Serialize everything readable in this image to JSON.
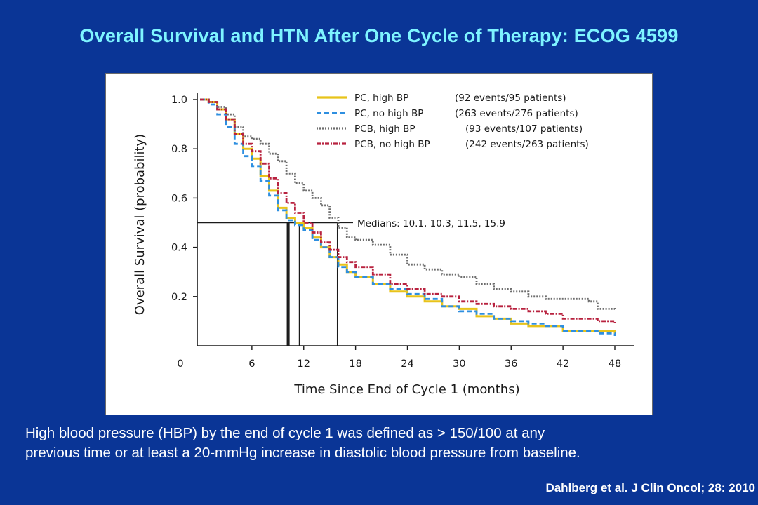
{
  "slide": {
    "title": "Overall Survival and HTN After One Cycle of Therapy: ECOG 4599",
    "caption_line1": "High blood pressure (HBP) by the end of cycle 1 was defined as > 150/100 at any",
    "caption_line2": "previous time or at least a 20-mmHg increase in diastolic blood pressure from baseline.",
    "citation": "Dahlberg et al. J Clin Oncol; 28: 2010"
  },
  "chart_data": {
    "type": "line",
    "xlabel": "Time Since End of Cycle 1 (months)",
    "ylabel": "Overall Survival (probability)",
    "xlim": [
      0,
      48
    ],
    "ylim": [
      0,
      1.0
    ],
    "x_ticks": [
      "0",
      "6",
      "12",
      "18",
      "24",
      "30",
      "36",
      "42",
      "48"
    ],
    "y_ticks": [
      "0.2",
      "0.4",
      "0.6",
      "0.8",
      "1.0"
    ],
    "legend_position": "top-right",
    "median_annotation": "Medians: 10.1, 10.3, 11.5, 15.9",
    "medians": [
      10.1,
      10.3,
      11.5,
      15.9
    ],
    "median_level": 0.5,
    "series": [
      {
        "label": "PC, high BP",
        "detail": "(92 events/95 patients)",
        "color": "#e8c31a",
        "dash": "solid",
        "points": [
          [
            0,
            1.0
          ],
          [
            1,
            0.99
          ],
          [
            2,
            0.96
          ],
          [
            3,
            0.92
          ],
          [
            4,
            0.86
          ],
          [
            5,
            0.8
          ],
          [
            6,
            0.76
          ],
          [
            7,
            0.69
          ],
          [
            8,
            0.63
          ],
          [
            9,
            0.56
          ],
          [
            10,
            0.52
          ],
          [
            11,
            0.5
          ],
          [
            12,
            0.48
          ],
          [
            13,
            0.44
          ],
          [
            14,
            0.4
          ],
          [
            15,
            0.36
          ],
          [
            16,
            0.33
          ],
          [
            17,
            0.3
          ],
          [
            18,
            0.28
          ],
          [
            20,
            0.25
          ],
          [
            22,
            0.22
          ],
          [
            24,
            0.2
          ],
          [
            26,
            0.18
          ],
          [
            28,
            0.16
          ],
          [
            30,
            0.15
          ],
          [
            32,
            0.12
          ],
          [
            34,
            0.11
          ],
          [
            36,
            0.09
          ],
          [
            38,
            0.08
          ],
          [
            42,
            0.06
          ],
          [
            46,
            0.06
          ],
          [
            48,
            0.05
          ]
        ]
      },
      {
        "label": "PC, no high BP",
        "detail": "(263 events/276 patients)",
        "color": "#2e8fe0",
        "dash": "dashed",
        "points": [
          [
            0,
            1.0
          ],
          [
            1,
            0.98
          ],
          [
            2,
            0.94
          ],
          [
            3,
            0.89
          ],
          [
            4,
            0.82
          ],
          [
            5,
            0.77
          ],
          [
            6,
            0.73
          ],
          [
            7,
            0.67
          ],
          [
            8,
            0.61
          ],
          [
            9,
            0.55
          ],
          [
            10,
            0.51
          ],
          [
            11,
            0.49
          ],
          [
            12,
            0.47
          ],
          [
            13,
            0.43
          ],
          [
            14,
            0.4
          ],
          [
            15,
            0.36
          ],
          [
            16,
            0.32
          ],
          [
            17,
            0.3
          ],
          [
            18,
            0.28
          ],
          [
            20,
            0.25
          ],
          [
            22,
            0.23
          ],
          [
            24,
            0.21
          ],
          [
            26,
            0.19
          ],
          [
            28,
            0.16
          ],
          [
            30,
            0.14
          ],
          [
            32,
            0.13
          ],
          [
            34,
            0.11
          ],
          [
            36,
            0.1
          ],
          [
            38,
            0.09
          ],
          [
            40,
            0.08
          ],
          [
            42,
            0.06
          ],
          [
            44,
            0.06
          ],
          [
            46,
            0.05
          ],
          [
            48,
            0.04
          ]
        ]
      },
      {
        "label": "PCB, high BP",
        "detail": "(93 events/107 patients)",
        "color": "#6d6d6d",
        "dash": "dotted",
        "points": [
          [
            0,
            1.0
          ],
          [
            1,
            0.99
          ],
          [
            2,
            0.97
          ],
          [
            3,
            0.94
          ],
          [
            4,
            0.89
          ],
          [
            5,
            0.85
          ],
          [
            6,
            0.84
          ],
          [
            7,
            0.82
          ],
          [
            8,
            0.78
          ],
          [
            9,
            0.75
          ],
          [
            10,
            0.7
          ],
          [
            11,
            0.66
          ],
          [
            12,
            0.63
          ],
          [
            13,
            0.6
          ],
          [
            14,
            0.57
          ],
          [
            15,
            0.52
          ],
          [
            16,
            0.48
          ],
          [
            17,
            0.44
          ],
          [
            18,
            0.43
          ],
          [
            20,
            0.41
          ],
          [
            22,
            0.37
          ],
          [
            24,
            0.33
          ],
          [
            26,
            0.31
          ],
          [
            28,
            0.29
          ],
          [
            30,
            0.28
          ],
          [
            32,
            0.25
          ],
          [
            34,
            0.23
          ],
          [
            36,
            0.22
          ],
          [
            38,
            0.2
          ],
          [
            40,
            0.19
          ],
          [
            42,
            0.19
          ],
          [
            45,
            0.18
          ],
          [
            46,
            0.15
          ],
          [
            48,
            0.14
          ]
        ]
      },
      {
        "label": "PCB, no high BP",
        "detail": "(242 events/263 patients)",
        "color": "#b8223f",
        "dash": "dashdot",
        "points": [
          [
            0,
            1.0
          ],
          [
            1,
            0.99
          ],
          [
            2,
            0.96
          ],
          [
            3,
            0.92
          ],
          [
            4,
            0.86
          ],
          [
            5,
            0.82
          ],
          [
            6,
            0.79
          ],
          [
            7,
            0.74
          ],
          [
            8,
            0.68
          ],
          [
            9,
            0.62
          ],
          [
            10,
            0.58
          ],
          [
            11,
            0.54
          ],
          [
            12,
            0.5
          ],
          [
            13,
            0.46
          ],
          [
            14,
            0.42
          ],
          [
            15,
            0.39
          ],
          [
            16,
            0.36
          ],
          [
            17,
            0.34
          ],
          [
            18,
            0.32
          ],
          [
            20,
            0.29
          ],
          [
            22,
            0.25
          ],
          [
            24,
            0.23
          ],
          [
            26,
            0.21
          ],
          [
            28,
            0.2
          ],
          [
            30,
            0.18
          ],
          [
            32,
            0.17
          ],
          [
            34,
            0.16
          ],
          [
            36,
            0.15
          ],
          [
            38,
            0.14
          ],
          [
            40,
            0.13
          ],
          [
            42,
            0.11
          ],
          [
            44,
            0.11
          ],
          [
            46,
            0.1
          ],
          [
            48,
            0.09
          ]
        ]
      }
    ]
  }
}
